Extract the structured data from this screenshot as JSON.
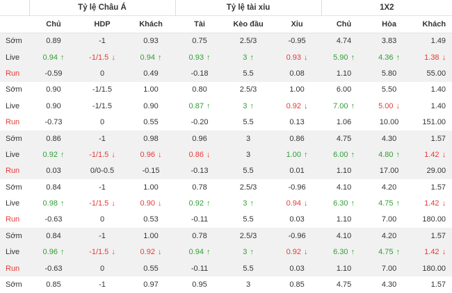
{
  "groups": [
    {
      "title": "Tỷ lệ Châu Á"
    },
    {
      "title": "Tỷ lệ tài xỉu"
    },
    {
      "title": "1X2"
    }
  ],
  "columns": [
    "Chủ",
    "HDP",
    "Khách",
    "Tài",
    "Kèo đầu",
    "Xỉu",
    "Chủ",
    "Hòa",
    "Khách"
  ],
  "arrows": {
    "up": "↑",
    "down": "↓"
  },
  "rows": [
    {
      "label": "Sớm",
      "type": "som",
      "cells": [
        {
          "v": "0.89"
        },
        {
          "v": "-1"
        },
        {
          "v": "0.93"
        },
        {
          "v": "0.75"
        },
        {
          "v": "2.5/3"
        },
        {
          "v": "-0.95"
        },
        {
          "v": "4.74"
        },
        {
          "v": "3.83"
        },
        {
          "v": "1.49"
        }
      ]
    },
    {
      "label": "Live",
      "type": "live",
      "cells": [
        {
          "v": "0.94",
          "d": "up"
        },
        {
          "v": "-1/1.5",
          "d": "down"
        },
        {
          "v": "0.94",
          "d": "up"
        },
        {
          "v": "0.93",
          "d": "up"
        },
        {
          "v": "3",
          "d": "up"
        },
        {
          "v": "0.93",
          "d": "down"
        },
        {
          "v": "5.90",
          "d": "up"
        },
        {
          "v": "4.36",
          "d": "up"
        },
        {
          "v": "1.38",
          "d": "down"
        }
      ]
    },
    {
      "label": "Run",
      "type": "run",
      "cells": [
        {
          "v": "-0.59"
        },
        {
          "v": "0"
        },
        {
          "v": "0.49"
        },
        {
          "v": "-0.18"
        },
        {
          "v": "5.5"
        },
        {
          "v": "0.08"
        },
        {
          "v": "1.10"
        },
        {
          "v": "5.80"
        },
        {
          "v": "55.00"
        }
      ]
    },
    {
      "label": "Sớm",
      "type": "som",
      "cells": [
        {
          "v": "0.90"
        },
        {
          "v": "-1/1.5"
        },
        {
          "v": "1.00"
        },
        {
          "v": "0.80"
        },
        {
          "v": "2.5/3"
        },
        {
          "v": "1.00"
        },
        {
          "v": "6.00"
        },
        {
          "v": "5.50"
        },
        {
          "v": "1.40"
        }
      ]
    },
    {
      "label": "Live",
      "type": "live",
      "cells": [
        {
          "v": "0.90"
        },
        {
          "v": "-1/1.5"
        },
        {
          "v": "0.90"
        },
        {
          "v": "0.87",
          "d": "up"
        },
        {
          "v": "3",
          "d": "up"
        },
        {
          "v": "0.92",
          "d": "down"
        },
        {
          "v": "7.00",
          "d": "up"
        },
        {
          "v": "5.00",
          "d": "down"
        },
        {
          "v": "1.40"
        }
      ]
    },
    {
      "label": "Run",
      "type": "run",
      "cells": [
        {
          "v": "-0.73"
        },
        {
          "v": "0"
        },
        {
          "v": "0.55"
        },
        {
          "v": "-0.20"
        },
        {
          "v": "5.5"
        },
        {
          "v": "0.13"
        },
        {
          "v": "1.06"
        },
        {
          "v": "10.00"
        },
        {
          "v": "151.00"
        }
      ]
    },
    {
      "label": "Sớm",
      "type": "som",
      "cells": [
        {
          "v": "0.86"
        },
        {
          "v": "-1"
        },
        {
          "v": "0.98"
        },
        {
          "v": "0.96"
        },
        {
          "v": "3"
        },
        {
          "v": "0.86"
        },
        {
          "v": "4.75"
        },
        {
          "v": "4.30"
        },
        {
          "v": "1.57"
        }
      ]
    },
    {
      "label": "Live",
      "type": "live",
      "cells": [
        {
          "v": "0.92",
          "d": "up"
        },
        {
          "v": "-1/1.5",
          "d": "down"
        },
        {
          "v": "0.96",
          "d": "down"
        },
        {
          "v": "0.86",
          "d": "down"
        },
        {
          "v": "3"
        },
        {
          "v": "1.00",
          "d": "up"
        },
        {
          "v": "6.00",
          "d": "up"
        },
        {
          "v": "4.80",
          "d": "up"
        },
        {
          "v": "1.42",
          "d": "down"
        }
      ]
    },
    {
      "label": "Run",
      "type": "run",
      "cells": [
        {
          "v": "0.03"
        },
        {
          "v": "0/0-0.5"
        },
        {
          "v": "-0.15"
        },
        {
          "v": "-0.13"
        },
        {
          "v": "5.5"
        },
        {
          "v": "0.01"
        },
        {
          "v": "1.10"
        },
        {
          "v": "17.00"
        },
        {
          "v": "29.00"
        }
      ]
    },
    {
      "label": "Sớm",
      "type": "som",
      "cells": [
        {
          "v": "0.84"
        },
        {
          "v": "-1"
        },
        {
          "v": "1.00"
        },
        {
          "v": "0.78"
        },
        {
          "v": "2.5/3"
        },
        {
          "v": "-0.96"
        },
        {
          "v": "4.10"
        },
        {
          "v": "4.20"
        },
        {
          "v": "1.57"
        }
      ]
    },
    {
      "label": "Live",
      "type": "live",
      "cells": [
        {
          "v": "0.98",
          "d": "up"
        },
        {
          "v": "-1/1.5",
          "d": "down"
        },
        {
          "v": "0.90",
          "d": "down"
        },
        {
          "v": "0.92",
          "d": "up"
        },
        {
          "v": "3",
          "d": "up"
        },
        {
          "v": "0.94",
          "d": "down"
        },
        {
          "v": "6.30",
          "d": "up"
        },
        {
          "v": "4.75",
          "d": "up"
        },
        {
          "v": "1.42",
          "d": "down"
        }
      ]
    },
    {
      "label": "Run",
      "type": "run",
      "cells": [
        {
          "v": "-0.63"
        },
        {
          "v": "0"
        },
        {
          "v": "0.53"
        },
        {
          "v": "-0.11"
        },
        {
          "v": "5.5"
        },
        {
          "v": "0.03"
        },
        {
          "v": "1.10"
        },
        {
          "v": "7.00"
        },
        {
          "v": "180.00"
        }
      ]
    },
    {
      "label": "Sớm",
      "type": "som",
      "cells": [
        {
          "v": "0.84"
        },
        {
          "v": "-1"
        },
        {
          "v": "1.00"
        },
        {
          "v": "0.78"
        },
        {
          "v": "2.5/3"
        },
        {
          "v": "-0.96"
        },
        {
          "v": "4.10"
        },
        {
          "v": "4.20"
        },
        {
          "v": "1.57"
        }
      ]
    },
    {
      "label": "Live",
      "type": "live",
      "cells": [
        {
          "v": "0.96",
          "d": "up"
        },
        {
          "v": "-1/1.5",
          "d": "down"
        },
        {
          "v": "0.92",
          "d": "down"
        },
        {
          "v": "0.94",
          "d": "up"
        },
        {
          "v": "3",
          "d": "up"
        },
        {
          "v": "0.92",
          "d": "down"
        },
        {
          "v": "6.30",
          "d": "up"
        },
        {
          "v": "4.75",
          "d": "up"
        },
        {
          "v": "1.42",
          "d": "down"
        }
      ]
    },
    {
      "label": "Run",
      "type": "run",
      "cells": [
        {
          "v": "-0.63"
        },
        {
          "v": "0"
        },
        {
          "v": "0.55"
        },
        {
          "v": "-0.11"
        },
        {
          "v": "5.5"
        },
        {
          "v": "0.03"
        },
        {
          "v": "1.10"
        },
        {
          "v": "7.00"
        },
        {
          "v": "180.00"
        }
      ]
    },
    {
      "label": "Sớm",
      "type": "som",
      "cells": [
        {
          "v": "0.85"
        },
        {
          "v": "-1"
        },
        {
          "v": "0.97"
        },
        {
          "v": "0.95"
        },
        {
          "v": "3"
        },
        {
          "v": "0.85"
        },
        {
          "v": "4.75"
        },
        {
          "v": "4.30"
        },
        {
          "v": "1.57"
        }
      ]
    }
  ]
}
